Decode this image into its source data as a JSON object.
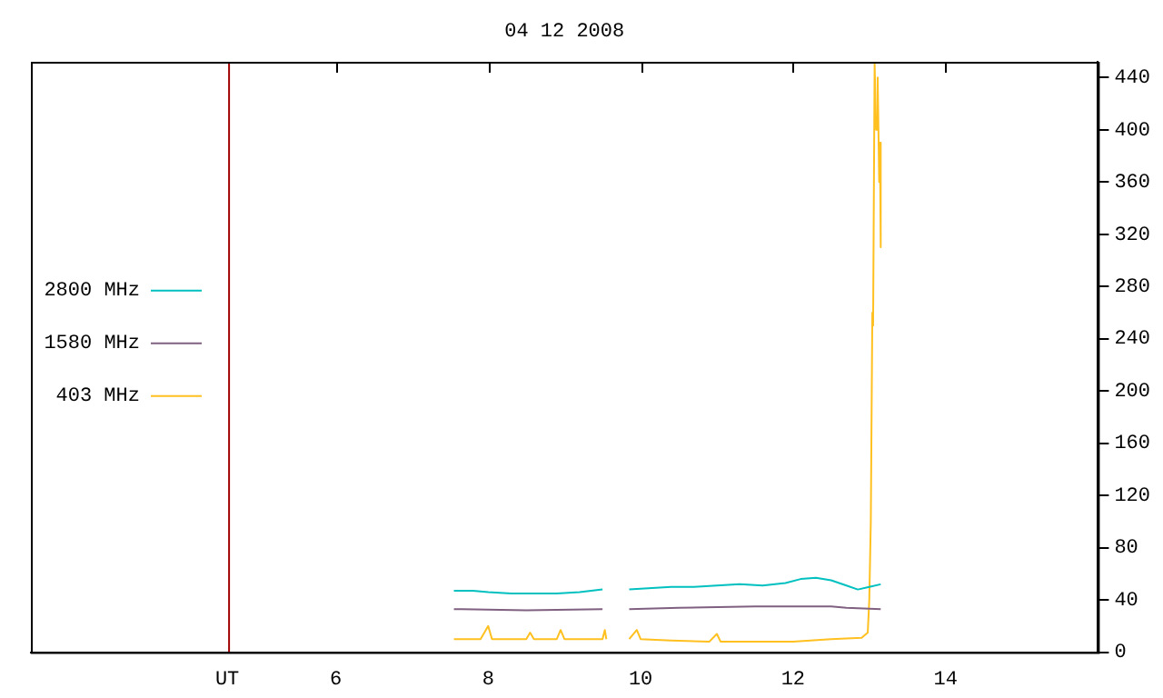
{
  "chart_data": {
    "type": "line",
    "title": "04 12 2008",
    "xlabel": "UT",
    "xlim": [
      2,
      16
    ],
    "xticks": [
      6,
      8,
      10,
      12,
      14
    ],
    "ylim": [
      0,
      452
    ],
    "yticks": [
      0,
      40,
      80,
      120,
      160,
      200,
      240,
      280,
      320,
      360,
      400,
      440
    ],
    "grid": false,
    "legend": "left",
    "marker": "none",
    "line_style": "solid",
    "ref_lines": [
      {
        "axis": "x",
        "value": 4.6,
        "color": "#a00000"
      }
    ],
    "series": [
      {
        "name": "2800 MHz",
        "color": "#00c0c0",
        "x": [
          7.55,
          7.8,
          8.0,
          8.3,
          8.6,
          8.9,
          9.2,
          9.5,
          9.67,
          9.85,
          10.1,
          10.4,
          10.7,
          11.0,
          11.3,
          11.6,
          11.9,
          12.1,
          12.3,
          12.5,
          12.7,
          12.85,
          13.0,
          13.15
        ],
        "values": [
          47,
          47,
          46,
          45,
          45,
          45,
          46,
          48,
          null,
          48,
          49,
          50,
          50,
          51,
          52,
          51,
          53,
          56,
          57,
          55,
          51,
          48,
          50,
          52
        ]
      },
      {
        "name": "1580 MHz",
        "color": "#806080",
        "x": [
          7.55,
          8.5,
          9.5,
          9.67,
          9.85,
          10.5,
          11.5,
          12.5,
          12.7,
          13.15
        ],
        "values": [
          33,
          32,
          33,
          null,
          33,
          34,
          35,
          35,
          34,
          33
        ]
      },
      {
        "name": "403 MHz",
        "color": "#ffc020",
        "x": [
          7.55,
          7.9,
          8.0,
          8.05,
          8.5,
          8.55,
          8.6,
          8.9,
          8.95,
          9.0,
          9.5,
          9.53,
          9.55,
          9.67,
          9.85,
          9.95,
          10.0,
          10.4,
          10.9,
          11.0,
          11.05,
          11.5,
          12.0,
          12.5,
          12.9,
          12.98,
          13.0,
          13.02,
          13.04,
          13.05,
          13.07,
          13.09,
          13.11,
          13.13,
          13.14,
          13.15
        ],
        "values": [
          10,
          10,
          20,
          10,
          10,
          15,
          10,
          10,
          17,
          10,
          10,
          17,
          10,
          null,
          10,
          17,
          10,
          9,
          8,
          14,
          8,
          8,
          8,
          10,
          11,
          15,
          40,
          100,
          260,
          250,
          450,
          400,
          440,
          360,
          390,
          310
        ]
      }
    ]
  }
}
